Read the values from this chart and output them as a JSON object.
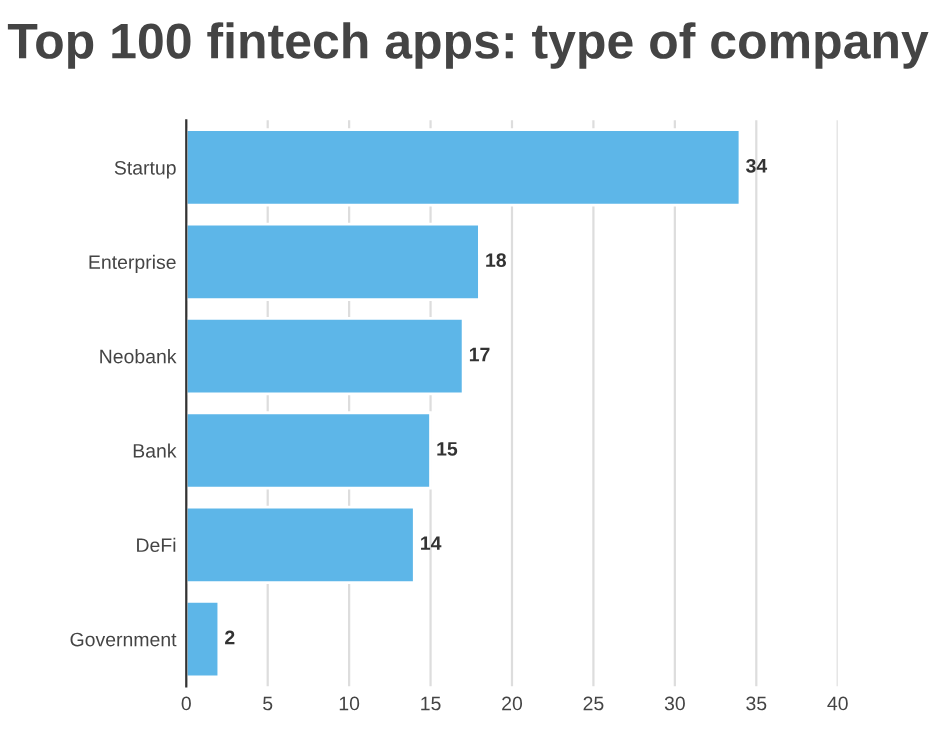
{
  "chart_data": {
    "type": "bar",
    "orientation": "horizontal",
    "title": "Top 100 fintech apps: type of company",
    "categories": [
      "Startup",
      "Enterprise",
      "Neobank",
      "Bank",
      "DeFi",
      "Government"
    ],
    "values": [
      34,
      18,
      17,
      15,
      14,
      2
    ],
    "color": "#5db6e8",
    "xlim": [
      0,
      40
    ],
    "xticks": [
      0,
      5,
      10,
      15,
      20,
      25,
      30,
      35,
      40
    ],
    "grid": "x",
    "data_labels": true
  }
}
